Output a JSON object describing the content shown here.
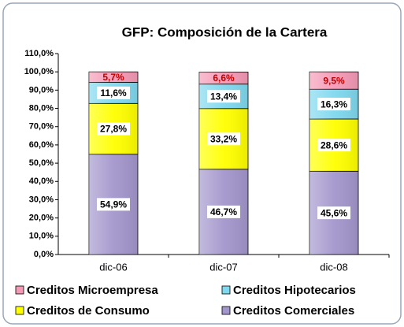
{
  "chart_data": {
    "type": "stacked_bar",
    "title": "GFP: Composición de la Cartera",
    "categories": [
      "dic-06",
      "dic-07",
      "dic-08"
    ],
    "series": [
      {
        "name": "Creditos Comerciales",
        "color": "#a396cc",
        "label_color": "#000000",
        "values": [
          54.9,
          46.7,
          45.6
        ],
        "value_labels": [
          "54,9%",
          "46,7%",
          "45,6%"
        ]
      },
      {
        "name": "Creditos de Consumo",
        "color": "#ffff00",
        "label_color": "#000000",
        "values": [
          27.8,
          33.2,
          28.6
        ],
        "value_labels": [
          "27,8%",
          "33,2%",
          "28,6%"
        ]
      },
      {
        "name": "Creditos Hipotecarios",
        "color": "#7fd8ee",
        "label_color": "#000000",
        "values": [
          11.6,
          13.4,
          16.3
        ],
        "value_labels": [
          "11,6%",
          "13,4%",
          "16,3%"
        ]
      },
      {
        "name": "Creditos Microempresa",
        "color": "#f59ab6",
        "label_color": "#c00000",
        "values": [
          5.7,
          6.6,
          9.5
        ],
        "value_labels": [
          "5,7%",
          "6,6%",
          "9,5%"
        ]
      }
    ],
    "ylim": [
      0,
      110
    ],
    "yticks": [
      {
        "value": 0,
        "label": "0,0%"
      },
      {
        "value": 10,
        "label": "10,0%"
      },
      {
        "value": 20,
        "label": "20,0%"
      },
      {
        "value": 30,
        "label": "30,0%"
      },
      {
        "value": 40,
        "label": "40,0%"
      },
      {
        "value": 50,
        "label": "50,0%"
      },
      {
        "value": 60,
        "label": "60,0%"
      },
      {
        "value": 70,
        "label": "70,0%"
      },
      {
        "value": 80,
        "label": "80,0%"
      },
      {
        "value": 90,
        "label": "90,0%"
      },
      {
        "value": 100,
        "label": "100,0%"
      },
      {
        "value": 110,
        "label": "110,0%"
      }
    ],
    "grid": false
  }
}
